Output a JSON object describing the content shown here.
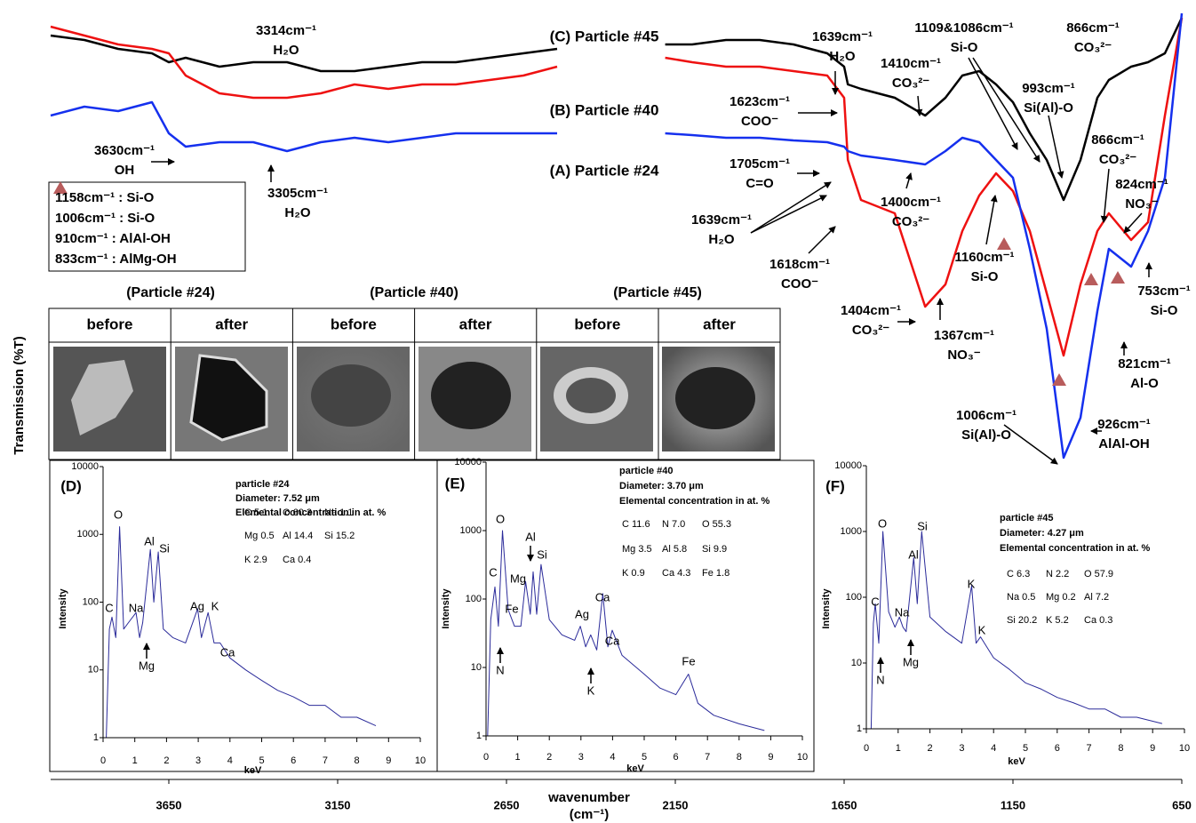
{
  "chart_data": [
    {
      "type": "line",
      "y_label": "Transmission (%T)",
      "x_label": [
        "wavenumber",
        "(cm⁻¹)"
      ],
      "x": [
        4000,
        3900,
        3800,
        3700,
        3650,
        3600,
        3500,
        3400,
        3300,
        3200,
        3100,
        3000,
        2900,
        2800,
        2700,
        2600,
        2500,
        2300,
        2180,
        2100,
        2000,
        1900,
        1800,
        1700,
        1650,
        1639,
        1600,
        1500,
        1410,
        1350,
        1300,
        1250,
        1200,
        1150,
        1100,
        1050,
        1000,
        950,
        900,
        866,
        800,
        750,
        700,
        650
      ],
      "xlim": [
        4000,
        650
      ],
      "xticks": [
        3650,
        3150,
        2650,
        2150,
        1650,
        1150,
        650
      ],
      "ylim": [
        0,
        867
      ],
      "series": [
        {
          "name": "(C) Particle #45",
          "color": "#000000",
          "values": [
            837,
            832,
            822,
            817,
            807,
            812,
            802,
            807,
            807,
            797,
            797,
            802,
            807,
            807,
            812,
            817,
            822,
            null,
            827,
            827,
            832,
            832,
            827,
            817,
            802,
            782,
            777,
            767,
            747,
            767,
            792,
            797,
            782,
            762,
            727,
            697,
            652,
            697,
            767,
            787,
            802,
            807,
            817,
            857
          ]
        },
        {
          "name": "(B) Particle #40",
          "color": "#ee1111",
          "values": [
            847,
            837,
            827,
            822,
            817,
            792,
            772,
            767,
            767,
            772,
            782,
            777,
            782,
            782,
            787,
            792,
            802,
            null,
            812,
            807,
            802,
            802,
            797,
            792,
            767,
            697,
            652,
            637,
            532,
            557,
            617,
            657,
            682,
            662,
            617,
            547,
            477,
            557,
            617,
            637,
            607,
            627,
            747,
            857
          ]
        },
        {
          "name": "(A) Particle #24",
          "color": "#1530ee",
          "values": [
            747,
            757,
            752,
            762,
            727,
            712,
            717,
            717,
            707,
            717,
            722,
            717,
            722,
            727,
            727,
            727,
            727,
            null,
            727,
            725,
            722,
            722,
            719,
            717,
            712,
            707,
            702,
            697,
            692,
            707,
            722,
            717,
            697,
            677,
            597,
            507,
            362,
            407,
            527,
            597,
            577,
            617,
            677,
            862
          ]
        }
      ],
      "annotations": [
        {
          "lines": [
            "3314cm⁻¹",
            "H₂O"
          ]
        },
        {
          "lines": [
            "3630cm⁻¹",
            "OH"
          ]
        },
        {
          "lines": [
            "3305cm⁻¹",
            "H₂O"
          ]
        },
        {
          "lines": [
            "1639cm⁻¹",
            "H₂O"
          ]
        },
        {
          "lines": [
            "1109&1086cm⁻¹",
            "Si-O"
          ]
        },
        {
          "lines": [
            "866cm⁻¹",
            "CO₃²⁻"
          ]
        },
        {
          "lines": [
            "1410cm⁻¹",
            "CO₃²⁻"
          ]
        },
        {
          "lines": [
            "993cm⁻¹",
            "Si(Al)-O"
          ]
        },
        {
          "lines": [
            "1623cm⁻¹",
            "COO⁻"
          ]
        },
        {
          "lines": [
            "1705cm⁻¹",
            "C=O"
          ]
        },
        {
          "lines": [
            "1400cm⁻¹",
            "CO₃²⁻"
          ]
        },
        {
          "lines": [
            "1639cm⁻¹",
            "H₂O"
          ]
        },
        {
          "lines": [
            "1618cm⁻¹",
            "COO⁻"
          ]
        },
        {
          "lines": [
            "866cm⁻¹",
            "CO₃²⁻"
          ]
        },
        {
          "lines": [
            "824cm⁻¹",
            "NO₃⁻"
          ]
        },
        {
          "lines": [
            "1160cm⁻¹",
            "Si-O"
          ]
        },
        {
          "lines": [
            "753cm⁻¹",
            "Si-O"
          ]
        },
        {
          "lines": [
            "1404cm⁻¹",
            "CO₃²⁻"
          ]
        },
        {
          "lines": [
            "1367cm⁻¹",
            "NO₃⁻"
          ]
        },
        {
          "lines": [
            "821cm⁻¹",
            "Al-O"
          ]
        },
        {
          "lines": [
            "1006cm⁻¹",
            "Si(Al)-O"
          ]
        },
        {
          "lines": [
            "926cm⁻¹",
            "AlAl-OH"
          ]
        }
      ]
    },
    {
      "type": "line",
      "panel": "(D)",
      "x_label": "keV",
      "y_label": "Intensity",
      "log_y": true,
      "color": "#2b2b9a",
      "x": [
        0.1,
        0.2,
        0.28,
        0.4,
        0.52,
        0.65,
        0.8,
        1.04,
        1.15,
        1.25,
        1.49,
        1.6,
        1.74,
        1.9,
        2.2,
        2.6,
        2.98,
        3.1,
        3.31,
        3.5,
        3.69,
        4,
        4.5,
        5,
        5.5,
        6,
        6.5,
        7,
        7.5,
        8,
        8.6
      ],
      "values": [
        1,
        40,
        60,
        30,
        1300,
        40,
        50,
        70,
        30,
        50,
        600,
        100,
        550,
        40,
        30,
        25,
        80,
        30,
        70,
        25,
        25,
        15,
        10,
        7,
        5,
        4,
        3,
        3,
        2,
        2,
        1.5
      ],
      "xlim": [
        0,
        10
      ],
      "xticks": [
        0,
        1,
        2,
        3,
        4,
        5,
        6,
        7,
        8,
        9,
        10
      ],
      "ylim": [
        1,
        10000
      ],
      "yticks": [
        1,
        10,
        100,
        1000,
        10000
      ],
      "info": [
        "particle #24",
        "Diameter: 7.52 μm",
        "Elemental concentration in at. %"
      ],
      "concentrations": [
        [
          "C 5.1",
          "O 60.3",
          "Na 1.1"
        ],
        [
          "Mg 0.5",
          "Al 14.4",
          "Si 15.2"
        ],
        [
          "K 2.9",
          "Ca 0.4"
        ]
      ],
      "peak_labels": [
        "O",
        "Al",
        "Si",
        "C",
        "Na",
        "Mg",
        "Ag",
        "K",
        "Ca"
      ]
    },
    {
      "type": "line",
      "panel": "(E)",
      "x_label": "keV",
      "y_label": "Intensity",
      "log_y": true,
      "color": "#2b2b9a",
      "x": [
        0.05,
        0.15,
        0.28,
        0.39,
        0.52,
        0.7,
        0.9,
        1.1,
        1.25,
        1.4,
        1.49,
        1.6,
        1.74,
        2,
        2.4,
        2.8,
        2.98,
        3.15,
        3.31,
        3.5,
        3.69,
        3.85,
        3.99,
        4.3,
        5,
        5.5,
        6,
        6.4,
        6.7,
        7.2,
        8,
        8.8
      ],
      "values": [
        1,
        50,
        150,
        40,
        1000,
        70,
        40,
        40,
        180,
        60,
        250,
        60,
        320,
        50,
        30,
        25,
        40,
        20,
        30,
        18,
        120,
        20,
        35,
        15,
        8,
        5,
        4,
        8,
        3,
        2,
        1.5,
        1.2
      ],
      "xlim": [
        0,
        10
      ],
      "xticks": [
        0,
        1,
        2,
        3,
        4,
        5,
        6,
        7,
        8,
        9,
        10
      ],
      "ylim": [
        1,
        10000
      ],
      "yticks": [
        1,
        10,
        100,
        1000,
        10000
      ],
      "info": [
        "particle #40",
        "Diameter: 3.70 μm",
        "Elemental concentration in at. %"
      ],
      "concentrations": [
        [
          "C 11.6",
          "N  7.0",
          "O 55.3"
        ],
        [
          "Mg 3.5",
          "Al  5.8",
          "Si 9.9"
        ],
        [
          "K 0.9",
          "Ca 4.3",
          "Fe 1.8"
        ]
      ],
      "peak_labels": [
        "O",
        "Al",
        "Si",
        "C",
        "Mg",
        "Fe",
        "N",
        "Ag",
        "Ca",
        "Ca",
        "K",
        "Fe"
      ]
    },
    {
      "type": "line",
      "panel": "(F)",
      "x_label": "keV",
      "y_label": "Intensity",
      "log_y": true,
      "color": "#2b2b9a",
      "x": [
        0.15,
        0.22,
        0.28,
        0.39,
        0.52,
        0.7,
        0.9,
        1.04,
        1.15,
        1.25,
        1.49,
        1.6,
        1.74,
        2,
        2.5,
        3,
        3.31,
        3.45,
        3.59,
        4,
        4.5,
        5,
        5.5,
        6,
        6.5,
        7,
        7.5,
        8,
        8.5,
        9.3
      ],
      "values": [
        1,
        40,
        80,
        20,
        1000,
        60,
        35,
        50,
        35,
        30,
        400,
        80,
        1000,
        50,
        30,
        20,
        150,
        20,
        25,
        12,
        8,
        5,
        4,
        3,
        2.5,
        2,
        2,
        1.5,
        1.5,
        1.2
      ],
      "xlim": [
        0,
        10
      ],
      "xticks": [
        0,
        1,
        2,
        3,
        4,
        5,
        6,
        7,
        8,
        9,
        10
      ],
      "ylim": [
        1,
        10000
      ],
      "yticks": [
        1,
        10,
        100,
        1000,
        10000
      ],
      "info": [
        "particle #45",
        "Diameter: 4.27 μm",
        "Elemental concentration in at. %"
      ],
      "concentrations": [
        [
          "C 6.3",
          "N 2.2",
          "O 57.9"
        ],
        [
          "Na 0.5",
          "Mg 0.2",
          "Al  7.2"
        ],
        [
          "Si 20.2",
          "K 5.2",
          "Ca 0.3"
        ]
      ],
      "peak_labels": [
        "O",
        "Si",
        "Al",
        "C",
        "Na",
        "N",
        "Mg",
        "K",
        "K"
      ]
    }
  ],
  "band_legend": [
    "1158cm⁻¹ : Si-O",
    "1006cm⁻¹ : Si-O",
    "910cm⁻¹ : AlAl-OH",
    "833cm⁻¹ : AlMg-OH"
  ],
  "image_table": {
    "particles": [
      "(Particle #24)",
      "(Particle #40)",
      "(Particle #45)"
    ],
    "columns": [
      "before",
      "after",
      "before",
      "after",
      "before",
      "after"
    ]
  }
}
